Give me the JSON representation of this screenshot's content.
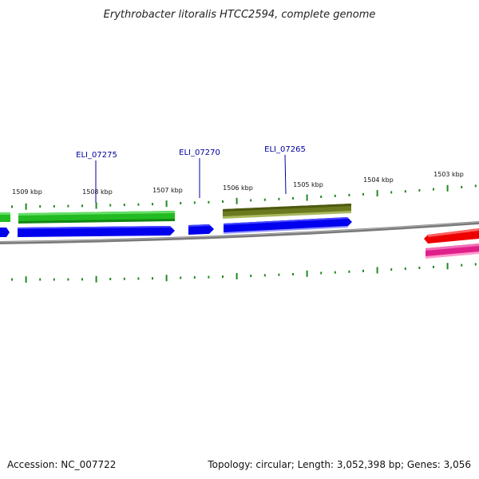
{
  "title": "Erythrobacter litoralis HTCC2594, complete genome",
  "footer": {
    "accession": "Accession: NC_007722",
    "topology": "Topology: circular; Length: 3,052,398 bp; Genes: 3,056"
  },
  "ticks": [
    "1509 kbp",
    "1508 kbp",
    "1507 kbp",
    "1506 kbp",
    "1505 kbp",
    "1504 kbp",
    "1503 kbp"
  ],
  "genes": [
    {
      "locus": "ELI_07275",
      "track": "forward",
      "strand": "+",
      "color": "#22bb22"
    },
    {
      "locus": "ELI_07270",
      "track": "forward",
      "strand": "+",
      "color": "#0000ee"
    },
    {
      "locus": "ELI_07265",
      "track": "forward",
      "strand": "+",
      "color": "#6b7a1e"
    }
  ],
  "colors": {
    "tick": "#228822",
    "backbone": "#7a7a7a",
    "green_gene": "#22bb22",
    "blue_gene": "#0000ee",
    "olive_gene": "#6b7a1e",
    "red_gene": "#ee0000",
    "pink_gene": "#e0208a",
    "label": "#0000a0"
  }
}
